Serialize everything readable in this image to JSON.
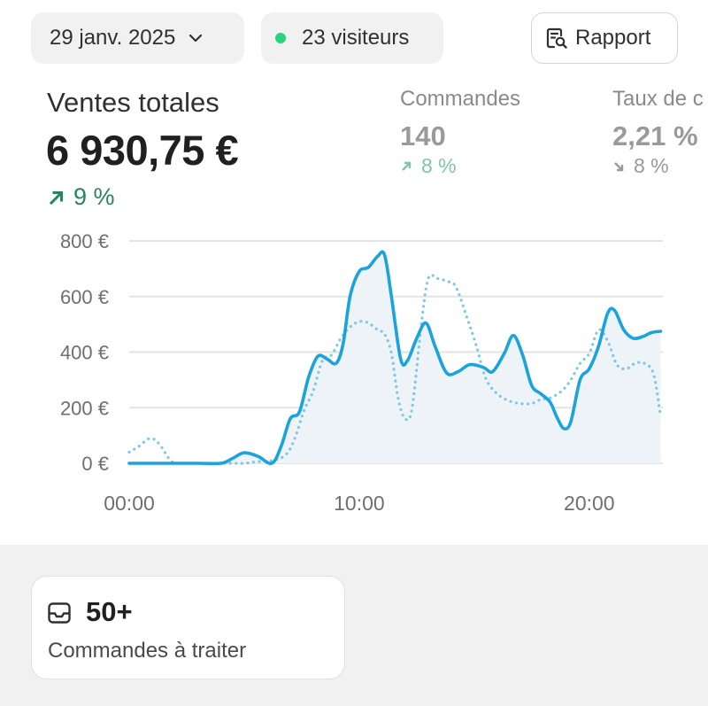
{
  "toolbar": {
    "date_label": "29 janv. 2025",
    "visitors_label": "23 visiteurs",
    "report_label": "Rapport"
  },
  "metrics": {
    "total_sales": {
      "title": "Ventes totales",
      "value": "6 930,75 €",
      "delta": "9 %",
      "delta_direction": "up",
      "delta_color": "#29845a"
    },
    "orders": {
      "title": "Commandes",
      "value": "140",
      "delta": "8 %",
      "delta_direction": "up"
    },
    "conversion": {
      "title": "Taux de c",
      "value": "2,21 %",
      "delta": "8 %",
      "delta_direction": "down"
    }
  },
  "chart_data": {
    "type": "line",
    "x_unit": "hours",
    "x_ticks": [
      {
        "value": 0,
        "label": "00:00"
      },
      {
        "value": 10,
        "label": "10:00"
      },
      {
        "value": 20,
        "label": "20:00"
      }
    ],
    "y_ticks": [
      {
        "value": 0,
        "label": "0 €"
      },
      {
        "value": 200,
        "label": "200 €"
      },
      {
        "value": 400,
        "label": "400 €"
      },
      {
        "value": 600,
        "label": "600 €"
      },
      {
        "value": 800,
        "label": "800 €"
      }
    ],
    "xlim": [
      0,
      23.2
    ],
    "ylim": [
      0,
      800
    ],
    "grid": true,
    "series": [
      {
        "style": "solid",
        "color": "#1aa3dc",
        "points": [
          [
            0,
            0
          ],
          [
            1,
            0
          ],
          [
            2,
            0
          ],
          [
            3,
            0
          ],
          [
            4,
            0
          ],
          [
            4.5,
            18
          ],
          [
            5,
            38
          ],
          [
            5.6,
            25
          ],
          [
            6.2,
            0
          ],
          [
            6.6,
            60
          ],
          [
            7,
            160
          ],
          [
            7.4,
            185
          ],
          [
            7.8,
            310
          ],
          [
            8.2,
            385
          ],
          [
            8.6,
            375
          ],
          [
            9,
            360
          ],
          [
            9.3,
            430
          ],
          [
            9.6,
            600
          ],
          [
            10,
            690
          ],
          [
            10.4,
            705
          ],
          [
            10.8,
            745
          ],
          [
            11.1,
            750
          ],
          [
            11.4,
            600
          ],
          [
            11.8,
            375
          ],
          [
            12.1,
            370
          ],
          [
            12.5,
            450
          ],
          [
            12.9,
            505
          ],
          [
            13.3,
            420
          ],
          [
            13.8,
            325
          ],
          [
            14.3,
            330
          ],
          [
            14.8,
            355
          ],
          [
            15.4,
            345
          ],
          [
            15.8,
            330
          ],
          [
            16.3,
            395
          ],
          [
            16.7,
            460
          ],
          [
            17.1,
            390
          ],
          [
            17.5,
            280
          ],
          [
            17.9,
            250
          ],
          [
            18.3,
            220
          ],
          [
            18.6,
            165
          ],
          [
            18.9,
            125
          ],
          [
            19.2,
            150
          ],
          [
            19.6,
            300
          ],
          [
            20,
            340
          ],
          [
            20.4,
            420
          ],
          [
            20.8,
            540
          ],
          [
            21.1,
            550
          ],
          [
            21.5,
            480
          ],
          [
            21.9,
            450
          ],
          [
            22.3,
            455
          ],
          [
            22.7,
            470
          ],
          [
            23.1,
            475
          ]
        ]
      },
      {
        "style": "dotted",
        "color": "#7ec8e3",
        "points": [
          [
            0,
            40
          ],
          [
            0.4,
            60
          ],
          [
            0.9,
            90
          ],
          [
            1.3,
            70
          ],
          [
            1.8,
            10
          ],
          [
            2.2,
            0
          ],
          [
            3,
            0
          ],
          [
            4,
            0
          ],
          [
            4.5,
            0
          ],
          [
            5,
            0
          ],
          [
            5.5,
            5
          ],
          [
            6.2,
            10
          ],
          [
            6.8,
            30
          ],
          [
            7.2,
            90
          ],
          [
            7.6,
            190
          ],
          [
            8,
            260
          ],
          [
            8.4,
            370
          ],
          [
            8.8,
            390
          ],
          [
            9.2,
            450
          ],
          [
            9.6,
            490
          ],
          [
            10,
            510
          ],
          [
            10.4,
            505
          ],
          [
            10.8,
            480
          ],
          [
            11.1,
            465
          ],
          [
            11.4,
            395
          ],
          [
            11.7,
            230
          ],
          [
            12,
            160
          ],
          [
            12.3,
            200
          ],
          [
            12.7,
            500
          ],
          [
            13,
            665
          ],
          [
            13.4,
            665
          ],
          [
            13.8,
            655
          ],
          [
            14.2,
            635
          ],
          [
            14.7,
            520
          ],
          [
            15.1,
            420
          ],
          [
            15.5,
            305
          ],
          [
            16,
            250
          ],
          [
            16.5,
            225
          ],
          [
            17,
            215
          ],
          [
            17.5,
            215
          ],
          [
            17.9,
            230
          ],
          [
            18.3,
            235
          ],
          [
            18.8,
            260
          ],
          [
            19.2,
            300
          ],
          [
            19.6,
            360
          ],
          [
            20,
            395
          ],
          [
            20.4,
            480
          ],
          [
            20.8,
            440
          ],
          [
            21.2,
            355
          ],
          [
            21.6,
            340
          ],
          [
            22,
            360
          ],
          [
            22.4,
            360
          ],
          [
            22.8,
            320
          ],
          [
            23.1,
            170
          ]
        ]
      }
    ],
    "area_fill_color": "#eef3f8"
  },
  "cards": {
    "orders_to_process": {
      "count": "50+",
      "label": "Commandes à traiter",
      "icon": "inbox-icon"
    }
  },
  "icons": {
    "date_chevron": "chevron-down-icon",
    "visitors_dot": "live-dot-icon",
    "report": "report-search-icon"
  }
}
